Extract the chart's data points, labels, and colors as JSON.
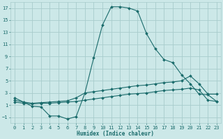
{
  "xlabel": "Humidex (Indice chaleur)",
  "background_color": "#cce8e8",
  "grid_color": "#a8cccc",
  "line_color": "#1a6b6b",
  "xlim": [
    -0.5,
    23.5
  ],
  "ylim": [
    -2,
    18
  ],
  "xticks": [
    0,
    1,
    2,
    3,
    4,
    5,
    6,
    7,
    8,
    9,
    10,
    11,
    12,
    13,
    14,
    15,
    16,
    17,
    18,
    19,
    20,
    21,
    22,
    23
  ],
  "yticks": [
    -1,
    1,
    3,
    5,
    7,
    9,
    11,
    13,
    15,
    17
  ],
  "curve1_x": [
    0,
    1,
    2,
    3,
    4,
    5,
    6,
    7,
    8,
    9,
    10,
    11,
    12,
    13,
    14,
    15,
    16,
    17,
    18,
    19,
    20,
    21,
    22,
    23
  ],
  "curve1_y": [
    2.2,
    1.5,
    0.8,
    0.7,
    -0.8,
    -0.8,
    -1.3,
    -0.9,
    3.0,
    8.8,
    14.2,
    17.2,
    17.2,
    17.0,
    16.5,
    12.8,
    10.3,
    8.5,
    8.0,
    6.0,
    4.5,
    2.8,
    2.7,
    1.6
  ],
  "curve2_x": [
    0,
    1,
    2,
    3,
    4,
    5,
    6,
    7,
    8,
    9,
    10,
    11,
    12,
    13,
    14,
    15,
    16,
    17,
    18,
    19,
    20,
    21,
    22,
    23
  ],
  "curve2_y": [
    1.8,
    1.5,
    1.3,
    1.4,
    1.5,
    1.6,
    1.7,
    2.2,
    3.0,
    3.2,
    3.4,
    3.6,
    3.8,
    4.0,
    4.2,
    4.3,
    4.5,
    4.7,
    4.8,
    5.0,
    5.8,
    4.5,
    2.8,
    2.8
  ],
  "curve3_x": [
    0,
    1,
    2,
    3,
    4,
    5,
    6,
    7,
    8,
    9,
    10,
    11,
    12,
    13,
    14,
    15,
    16,
    17,
    18,
    19,
    20,
    21,
    22,
    23
  ],
  "curve3_y": [
    1.5,
    1.3,
    1.2,
    1.3,
    1.3,
    1.4,
    1.5,
    1.6,
    1.8,
    2.0,
    2.2,
    2.4,
    2.6,
    2.8,
    2.9,
    3.0,
    3.2,
    3.4,
    3.5,
    3.6,
    3.8,
    3.5,
    1.8,
    1.6
  ]
}
